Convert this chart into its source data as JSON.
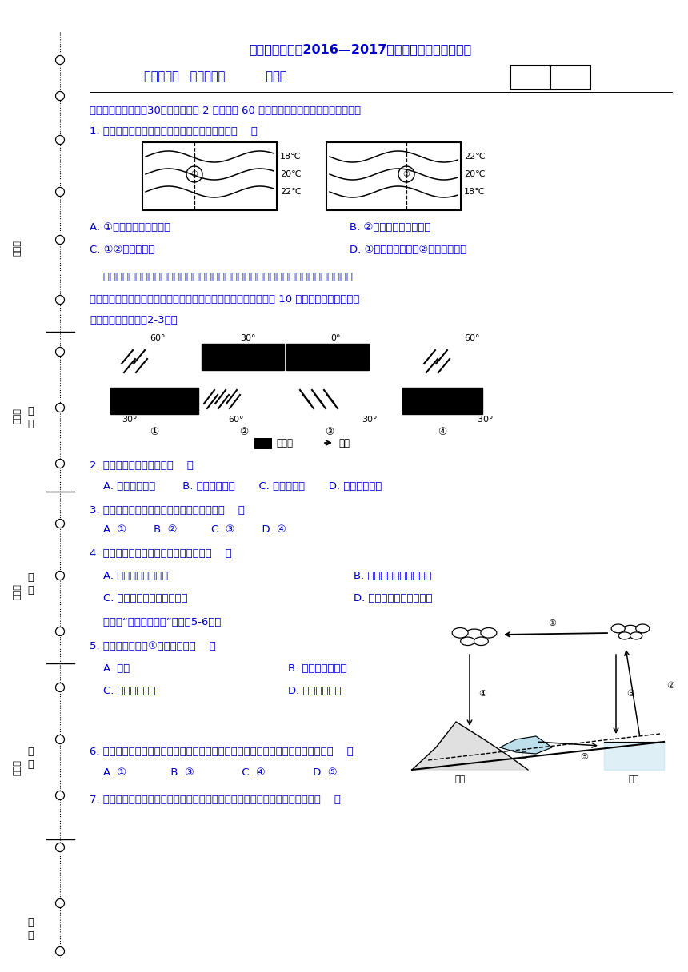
{
  "title": "甘肃省临夏中学2016—2017学年第一学期期末考试卷",
  "subtitle_line": "年级：高一   科目：地理           座位号",
  "section1": "一、单项选择题（共30小题，每小题 2 分，共计 60 分。请将正确答案涂在机读卡上。）",
  "q1": "1. 读海水等温线图，判断下列叙述中不正确的是（    ）",
  "q1_A": "A. ①是暖流，位于北半球",
  "q1_B": "B. ②是暖流，位于北半球",
  "q1_C": "C. ①②均向北流动",
  "q1_D": "D. ①位于大陆东屸，②位于大陆西屸",
  "q2": "2. 该地沿屸流经的洋流是（    ）",
  "q2_opts": "    A. 拉布拉多寒流        B. 北大西洋暖流       C. 本格拉寒流       D. 墓西哥湾暖流",
  "q3": "3. 戴维冲浪所借助的风最有可能是上图中的（    ）",
  "q3_opts": "    A. ①        B. ②          C. ③        D. ④",
  "q4": "4. 厕尔尼诺发生时，下列现象可信的是（    ）",
  "q4_A": "    A. 秘鲁沿屸更加干旱",
  "q4_B": "B. 秘鲁渔场上空海鸟增多",
  "q4_C": "    C. 印尼热带雨林易发生火灾",
  "q4_D": "D. 澳大利亚东部暴雨成灾",
  "passage2": "    读右图“水循环示意图”，完成5-6题。",
  "q5": "5. 下列实现右图中①的功能的是（    ）",
  "q5_A": "    A. 长江",
  "q5_B": "B. 副热带高气压带",
  "q5_C": "    C. 我国的夏季风",
  "q5_D": "D. 我国的冬季风",
  "q6": "6. 在水循环的各个环节中，南水北调工程体现人类活动对下列的哪个环节施加影响（    ）",
  "q6_opts": "    A. ①             B. ③              C. ④              D. ⑤",
  "q7": "7. 同一时刻，纽芬兰岛东部沿海海水的温度比英吉利海峡低得多，主要原因是（    ）",
  "text_color": "#0000CD",
  "bg_color": "#ffffff"
}
